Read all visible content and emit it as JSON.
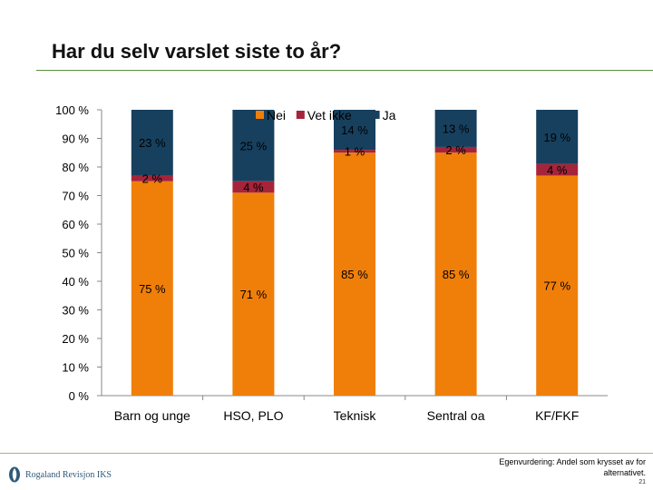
{
  "title": "Har du selv varslet siste to år?",
  "footer": {
    "logo_text": "Rogaland Revisjon IKS",
    "note": "Egenvurdering: Andel som krysset av for alternativet.",
    "page_number": "21"
  },
  "colors": {
    "nei": "#F07F09",
    "vet_ikke": "#A6243A",
    "ja": "#17405E",
    "axis": "#888888",
    "title_rule": "#5A8F3A"
  },
  "chart_data": {
    "type": "bar",
    "stacked": true,
    "normalized_percent": true,
    "categories": [
      "Barn og unge",
      "HSO, PLO",
      "Teknisk",
      "Sentral oa",
      "KF/FKF"
    ],
    "series": [
      {
        "name": "Nei",
        "values": [
          75,
          71,
          85,
          85,
          77
        ],
        "labels": [
          "75 %",
          "71 %",
          "85 %",
          "85 %",
          "77 %"
        ]
      },
      {
        "name": "Vet ikke",
        "values": [
          2,
          4,
          1,
          2,
          4
        ],
        "labels": [
          "2 %",
          "4 %",
          "1 %",
          "2 %",
          "4 %"
        ]
      },
      {
        "name": "Ja",
        "values": [
          23,
          25,
          14,
          13,
          19
        ],
        "labels": [
          "23 %",
          "25 %",
          "14 %",
          "13 %",
          "19 %"
        ]
      }
    ],
    "y_ticks": [
      "0 %",
      "10 %",
      "20 %",
      "30 %",
      "40 %",
      "50 %",
      "60 %",
      "70 %",
      "80 %",
      "90 %",
      "100 %"
    ],
    "ylim": [
      0,
      100
    ],
    "grid": false,
    "legend_position": "top"
  }
}
